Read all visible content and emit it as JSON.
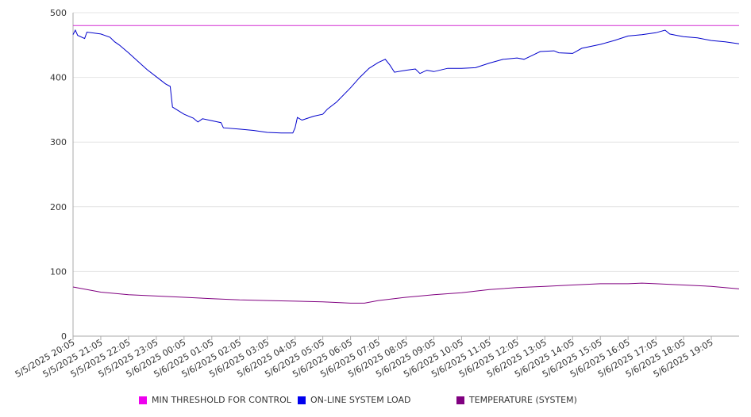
{
  "chart_data": {
    "type": "line",
    "title": "",
    "xlabel": "",
    "ylabel": "",
    "ylim": [
      0,
      500
    ],
    "y_ticks": [
      0,
      100,
      200,
      300,
      400,
      500
    ],
    "grid": true,
    "legend_placement": "bottom",
    "x_tick_labels": [
      "5/5/2025 20:05",
      "5/5/2025 21:05",
      "5/5/2025 22:05",
      "5/5/2025 23:05",
      "5/6/2025 00:05",
      "5/6/2025 01:05",
      "5/6/2025 02:05",
      "5/6/2025 03:05",
      "5/6/2025 04:05",
      "5/6/2025 05:05",
      "5/6/2025 06:05",
      "5/6/2025 07:05",
      "5/6/2025 08:05",
      "5/6/2025 09:05",
      "5/6/2025 10:05",
      "5/6/2025 11:05",
      "5/6/2025 12:05",
      "5/6/2025 13:05",
      "5/6/2025 14:05",
      "5/6/2025 15:05",
      "5/6/2025 16:05",
      "5/6/2025 17:05",
      "5/6/2025 18:05",
      "5/6/2025 19:05"
    ],
    "x_start": "5/5/2025 20:05",
    "x_end": "5/6/2025 20:05",
    "series": [
      {
        "name": "MIN THRESHOLD FOR CONTROL",
        "color": "#d22cd2",
        "points": [
          [
            "5/5/2025 20:05",
            480
          ],
          [
            "5/6/2025 20:05",
            480
          ]
        ]
      },
      {
        "name": "ON-LINE SYSTEM LOAD",
        "color": "#0000cc",
        "points": [
          [
            "5/5/2025 20:05",
            466
          ],
          [
            "5/5/2025 20:10",
            473
          ],
          [
            "5/5/2025 20:15",
            465
          ],
          [
            "5/5/2025 20:30",
            460
          ],
          [
            "5/5/2025 20:35",
            470
          ],
          [
            "5/5/2025 21:05",
            467
          ],
          [
            "5/5/2025 21:25",
            462
          ],
          [
            "5/5/2025 21:35",
            455
          ],
          [
            "5/5/2025 21:45",
            450
          ],
          [
            "5/5/2025 22:05",
            438
          ],
          [
            "5/5/2025 22:25",
            425
          ],
          [
            "5/5/2025 22:45",
            412
          ],
          [
            "5/5/2025 23:05",
            401
          ],
          [
            "5/5/2025 23:25",
            390
          ],
          [
            "5/5/2025 23:35",
            386
          ],
          [
            "5/5/2025 23:40",
            354
          ],
          [
            "5/6/2025 00:05",
            343
          ],
          [
            "5/6/2025 00:25",
            337
          ],
          [
            "5/6/2025 00:35",
            331
          ],
          [
            "5/6/2025 00:45",
            336
          ],
          [
            "5/6/2025 01:05",
            333
          ],
          [
            "5/6/2025 01:25",
            330
          ],
          [
            "5/6/2025 01:30",
            322
          ],
          [
            "5/6/2025 02:05",
            320
          ],
          [
            "5/6/2025 02:35",
            318
          ],
          [
            "5/6/2025 03:05",
            315
          ],
          [
            "5/6/2025 03:35",
            314
          ],
          [
            "5/6/2025 04:00",
            314
          ],
          [
            "5/6/2025 04:05",
            322
          ],
          [
            "5/6/2025 04:10",
            338
          ],
          [
            "5/6/2025 04:20",
            334
          ],
          [
            "5/6/2025 04:45",
            340
          ],
          [
            "5/6/2025 05:05",
            343
          ],
          [
            "5/6/2025 05:15",
            351
          ],
          [
            "5/6/2025 05:35",
            362
          ],
          [
            "5/6/2025 06:05",
            384
          ],
          [
            "5/6/2025 06:25",
            400
          ],
          [
            "5/6/2025 06:45",
            414
          ],
          [
            "5/6/2025 07:05",
            423
          ],
          [
            "5/6/2025 07:20",
            428
          ],
          [
            "5/6/2025 07:30",
            419
          ],
          [
            "5/6/2025 07:40",
            408
          ],
          [
            "5/6/2025 08:05",
            411
          ],
          [
            "5/6/2025 08:25",
            413
          ],
          [
            "5/6/2025 08:35",
            406
          ],
          [
            "5/6/2025 08:50",
            411
          ],
          [
            "5/6/2025 09:05",
            409
          ],
          [
            "5/6/2025 09:35",
            414
          ],
          [
            "5/6/2025 10:05",
            414
          ],
          [
            "5/6/2025 10:35",
            415
          ],
          [
            "5/6/2025 11:05",
            422
          ],
          [
            "5/6/2025 11:35",
            428
          ],
          [
            "5/6/2025 12:05",
            430
          ],
          [
            "5/6/2025 12:20",
            428
          ],
          [
            "5/6/2025 12:35",
            433
          ],
          [
            "5/6/2025 12:55",
            440
          ],
          [
            "5/6/2025 13:25",
            441
          ],
          [
            "5/6/2025 13:35",
            438
          ],
          [
            "5/6/2025 14:05",
            437
          ],
          [
            "5/6/2025 14:25",
            445
          ],
          [
            "5/6/2025 15:05",
            451
          ],
          [
            "5/6/2025 15:35",
            457
          ],
          [
            "5/6/2025 16:05",
            464
          ],
          [
            "5/6/2025 16:35",
            466
          ],
          [
            "5/6/2025 17:05",
            469
          ],
          [
            "5/6/2025 17:25",
            473
          ],
          [
            "5/6/2025 17:35",
            467
          ],
          [
            "5/6/2025 17:50",
            465
          ],
          [
            "5/6/2025 18:05",
            463
          ],
          [
            "5/6/2025 18:35",
            461
          ],
          [
            "5/6/2025 19:05",
            457
          ],
          [
            "5/6/2025 19:35",
            455
          ],
          [
            "5/6/2025 20:05",
            452
          ]
        ]
      },
      {
        "name": "TEMPERATURE (SYSTEM)",
        "color": "#800080",
        "points": [
          [
            "5/5/2025 20:05",
            76
          ],
          [
            "5/5/2025 21:05",
            68
          ],
          [
            "5/5/2025 22:05",
            64
          ],
          [
            "5/5/2025 23:05",
            62
          ],
          [
            "5/6/2025 00:05",
            60
          ],
          [
            "5/6/2025 01:05",
            58
          ],
          [
            "5/6/2025 02:05",
            56
          ],
          [
            "5/6/2025 03:05",
            55
          ],
          [
            "5/6/2025 04:05",
            54
          ],
          [
            "5/6/2025 05:05",
            53
          ],
          [
            "5/6/2025 06:05",
            51
          ],
          [
            "5/6/2025 06:35",
            51
          ],
          [
            "5/6/2025 07:05",
            55
          ],
          [
            "5/6/2025 08:05",
            60
          ],
          [
            "5/6/2025 09:05",
            64
          ],
          [
            "5/6/2025 10:05",
            67
          ],
          [
            "5/6/2025 11:05",
            72
          ],
          [
            "5/6/2025 12:05",
            75
          ],
          [
            "5/6/2025 13:05",
            77
          ],
          [
            "5/6/2025 14:05",
            79
          ],
          [
            "5/6/2025 15:05",
            81
          ],
          [
            "5/6/2025 16:05",
            81
          ],
          [
            "5/6/2025 16:35",
            82
          ],
          [
            "5/6/2025 17:05",
            81
          ],
          [
            "5/6/2025 18:05",
            79
          ],
          [
            "5/6/2025 19:05",
            77
          ],
          [
            "5/6/2025 20:05",
            73
          ]
        ]
      }
    ]
  }
}
